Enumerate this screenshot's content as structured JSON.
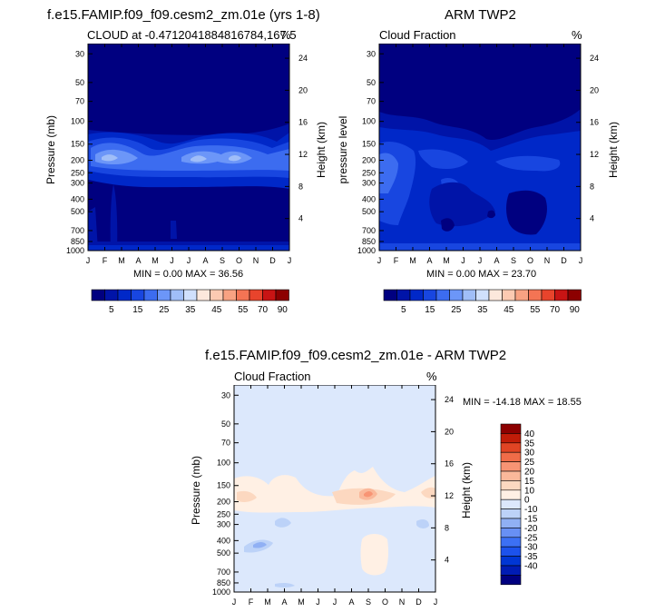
{
  "top_left": {
    "title": "f.e15.FAMIP.f09_f09.cesm2_zm.01e (yrs 1-8)",
    "left_label": "CLOUD at -0.4712041884816784,167.5",
    "right_label": "%",
    "ylabel": "Pressure (mb)",
    "y2label": "Height (km)",
    "stats": "MIN =   0.00 MAX =  36.56"
  },
  "top_right": {
    "title": "ARM TWP2",
    "left_label": "Cloud Fraction",
    "right_label": "%",
    "ylabel": "pressure level",
    "y2label": "Height (km)",
    "stats": "MIN =   0.00 MAX =  23.70"
  },
  "bottom": {
    "title": "f.e15.FAMIP.f09_f09.cesm2_zm.01e - ARM TWP2",
    "left_label": "Cloud Fraction",
    "right_label": "%",
    "ylabel": "Pressure (mb)",
    "y2label": "Height (km)",
    "stats": "MIN = -14.18 MAX =  18.55"
  },
  "colors": {
    "seq": [
      "#000080",
      "#0014a8",
      "#0028c8",
      "#1846e0",
      "#3c6cf0",
      "#6c96f8",
      "#a0bef8",
      "#d0e0fc",
      "#fce8dc",
      "#fccab2",
      "#f8a282",
      "#f47454",
      "#e8442c",
      "#c81414",
      "#8c0000"
    ],
    "diff": [
      "#000080",
      "#001cb4",
      "#0036d4",
      "#1c52ec",
      "#3c70f4",
      "#6890f4",
      "#90b0f4",
      "#bcd2f8",
      "#dce8fc",
      "#fff0e4",
      "#fcd8c0",
      "#fab89a",
      "#f89474",
      "#f06c48",
      "#e04424",
      "#c01c08",
      "#8c0000"
    ]
  },
  "chart_data": [
    {
      "type": "heatmap",
      "name": "model",
      "title": "f.e15.FAMIP.f09_f09.cesm2_zm.01e (yrs 1-8)",
      "variable": "CLOUD",
      "units": "%",
      "x": [
        "J",
        "F",
        "M",
        "A",
        "M",
        "J",
        "J",
        "A",
        "S",
        "O",
        "N",
        "D",
        "J"
      ],
      "y_pressure_ticks": [
        30,
        50,
        70,
        100,
        150,
        200,
        250,
        300,
        400,
        500,
        700,
        850,
        1000
      ],
      "y_height_ticks": [
        4,
        8,
        12,
        16,
        20,
        24
      ],
      "xlabel": "",
      "ylabel": "Pressure (mb)",
      "y2label": "Height (km)",
      "min": 0.0,
      "max": 36.56,
      "colorbar_levels": [
        5,
        15,
        25,
        35,
        45,
        55,
        70,
        90
      ],
      "description_of_field": "0-5% above 100 mb and below 300 mb; cloud layer 20-36% centered near 200 mb, maxima in Feb and Jul-Sep"
    },
    {
      "type": "heatmap",
      "name": "obs",
      "title": "ARM TWP2",
      "variable": "Cloud Fraction",
      "units": "%",
      "x": [
        "J",
        "F",
        "M",
        "A",
        "M",
        "J",
        "J",
        "A",
        "S",
        "O",
        "N",
        "D",
        "J"
      ],
      "y_pressure_ticks": [
        30,
        50,
        70,
        100,
        150,
        200,
        250,
        300,
        400,
        500,
        700,
        850,
        1000
      ],
      "y_height_ticks": [
        4,
        8,
        12,
        16,
        20,
        24
      ],
      "xlabel": "",
      "ylabel": "pressure level",
      "y2label": "Height (km)",
      "min": 0.0,
      "max": 23.7,
      "colorbar_levels": [
        5,
        15,
        25,
        35,
        45,
        55,
        70,
        90
      ],
      "description_of_field": "0-5% above ~120 mb; 5-25% from 120 mb to surface, maxima near 200 mb in Feb"
    },
    {
      "type": "heatmap",
      "name": "difference",
      "title": "f.e15.FAMIP.f09_f09.cesm2_zm.01e - ARM TWP2",
      "variable": "Cloud Fraction",
      "units": "%",
      "x": [
        "J",
        "F",
        "M",
        "A",
        "M",
        "J",
        "J",
        "A",
        "S",
        "O",
        "N",
        "D",
        "J"
      ],
      "y_pressure_ticks": [
        30,
        50,
        70,
        100,
        150,
        200,
        250,
        300,
        400,
        500,
        700,
        850,
        1000
      ],
      "y_height_ticks": [
        4,
        8,
        12,
        16,
        20,
        24
      ],
      "xlabel": "",
      "ylabel": "Pressure (mb)",
      "y2label": "Height (km)",
      "min": -14.18,
      "max": 18.55,
      "colorbar_levels": [
        40,
        35,
        30,
        25,
        20,
        15,
        10,
        0,
        -10,
        -15,
        -20,
        -25,
        -30,
        -35,
        -40
      ],
      "description_of_field": "mostly -10 to 0; positive 0-18 near 150-250 mb with max near Sep 200 mb; small negative patches near 400-600 mb and positive near Sep 700 mb"
    }
  ]
}
